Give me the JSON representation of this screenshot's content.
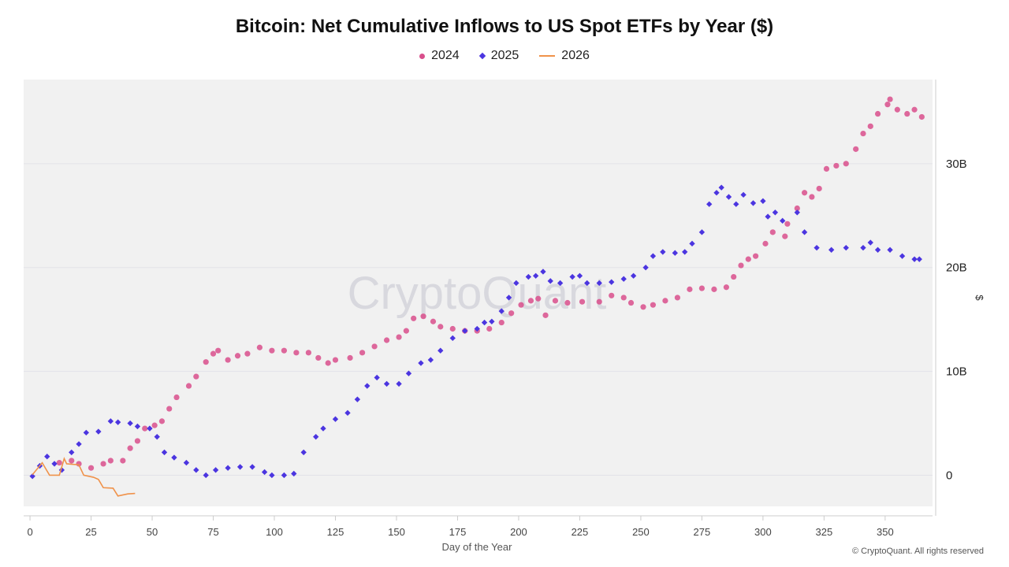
{
  "chart_data": {
    "type": "scatter",
    "title": "Bitcoin: Net Cumulative Inflows to US Spot ETFs by Year ($)",
    "xlabel": "Day of the Year",
    "ylabel": "$",
    "xlim": [
      -2.6,
      369.4
    ],
    "ylim": [
      -3,
      38.1
    ],
    "x_ticks": [
      0,
      25,
      50,
      75,
      100,
      125,
      150,
      175,
      200,
      225,
      250,
      275,
      300,
      325,
      350
    ],
    "y_ticks": [
      0,
      10,
      20,
      30
    ],
    "y_tick_labels": [
      "0",
      "10B",
      "20B",
      "30B"
    ],
    "y_axis_side": "right",
    "y_unit": "billions USD",
    "grid": true,
    "legend_position": "top",
    "watermark": "CryptoQuant",
    "series": [
      {
        "name": "2024",
        "marker": "circle",
        "color": "#d94f8c",
        "points": [
          [
            12,
            1.2
          ],
          [
            17,
            1.4
          ],
          [
            20,
            1.1
          ],
          [
            25,
            0.7
          ],
          [
            30,
            1.1
          ],
          [
            33,
            1.4
          ],
          [
            38,
            1.4
          ],
          [
            41,
            2.6
          ],
          [
            44,
            3.3
          ],
          [
            47,
            4.5
          ],
          [
            51,
            4.8
          ],
          [
            54,
            5.2
          ],
          [
            57,
            6.4
          ],
          [
            60,
            7.5
          ],
          [
            65,
            8.6
          ],
          [
            68,
            9.5
          ],
          [
            72,
            10.9
          ],
          [
            75,
            11.7
          ],
          [
            77,
            12.0
          ],
          [
            81,
            11.1
          ],
          [
            85,
            11.5
          ],
          [
            89,
            11.7
          ],
          [
            94,
            12.3
          ],
          [
            99,
            12.0
          ],
          [
            104,
            12.0
          ],
          [
            109,
            11.8
          ],
          [
            114,
            11.8
          ],
          [
            118,
            11.3
          ],
          [
            122,
            10.8
          ],
          [
            125,
            11.1
          ],
          [
            131,
            11.3
          ],
          [
            136,
            11.8
          ],
          [
            141,
            12.4
          ],
          [
            146,
            13.0
          ],
          [
            151,
            13.3
          ],
          [
            154,
            13.9
          ],
          [
            157,
            15.1
          ],
          [
            161,
            15.3
          ],
          [
            165,
            14.8
          ],
          [
            168,
            14.3
          ],
          [
            173,
            14.1
          ],
          [
            178,
            13.9
          ],
          [
            183,
            13.9
          ],
          [
            188,
            14.1
          ],
          [
            193,
            14.7
          ],
          [
            197,
            15.6
          ],
          [
            201,
            16.4
          ],
          [
            205,
            16.8
          ],
          [
            208,
            17.0
          ],
          [
            211,
            15.4
          ],
          [
            215,
            16.8
          ],
          [
            220,
            16.6
          ],
          [
            226,
            16.7
          ],
          [
            233,
            16.7
          ],
          [
            238,
            17.3
          ],
          [
            243,
            17.1
          ],
          [
            246,
            16.6
          ],
          [
            251,
            16.2
          ],
          [
            255,
            16.4
          ],
          [
            260,
            16.8
          ],
          [
            265,
            17.1
          ],
          [
            270,
            17.9
          ],
          [
            275,
            18.0
          ],
          [
            280,
            17.9
          ],
          [
            285,
            18.1
          ],
          [
            288,
            19.1
          ],
          [
            291,
            20.2
          ],
          [
            294,
            20.8
          ],
          [
            297,
            21.1
          ],
          [
            301,
            22.3
          ],
          [
            304,
            23.4
          ],
          [
            309,
            23.0
          ],
          [
            310,
            24.2
          ],
          [
            314,
            25.7
          ],
          [
            317,
            27.2
          ],
          [
            320,
            26.8
          ],
          [
            323,
            27.6
          ],
          [
            326,
            29.5
          ],
          [
            330,
            29.8
          ],
          [
            334,
            30.0
          ],
          [
            338,
            31.4
          ],
          [
            341,
            32.9
          ],
          [
            344,
            33.6
          ],
          [
            347,
            34.8
          ],
          [
            351,
            35.7
          ],
          [
            352,
            36.2
          ],
          [
            355,
            35.2
          ],
          [
            359,
            34.8
          ],
          [
            362,
            35.2
          ],
          [
            365,
            34.5
          ]
        ]
      },
      {
        "name": "2025",
        "marker": "diamond",
        "color": "#4b35e0",
        "points": [
          [
            1,
            -0.1
          ],
          [
            4,
            0.9
          ],
          [
            7,
            1.8
          ],
          [
            10,
            1.1
          ],
          [
            13,
            0.5
          ],
          [
            17,
            2.2
          ],
          [
            20,
            3.0
          ],
          [
            23,
            4.1
          ],
          [
            28,
            4.2
          ],
          [
            33,
            5.2
          ],
          [
            36,
            5.1
          ],
          [
            41,
            5.0
          ],
          [
            44,
            4.7
          ],
          [
            49,
            4.5
          ],
          [
            52,
            3.7
          ],
          [
            55,
            2.2
          ],
          [
            59,
            1.7
          ],
          [
            64,
            1.2
          ],
          [
            68,
            0.5
          ],
          [
            72,
            0.0
          ],
          [
            76,
            0.5
          ],
          [
            81,
            0.7
          ],
          [
            86,
            0.8
          ],
          [
            91,
            0.8
          ],
          [
            96,
            0.3
          ],
          [
            99,
            0.0
          ],
          [
            104,
            0.0
          ],
          [
            108,
            0.15
          ],
          [
            112,
            2.2
          ],
          [
            117,
            3.7
          ],
          [
            120,
            4.5
          ],
          [
            125,
            5.4
          ],
          [
            130,
            6.0
          ],
          [
            134,
            7.3
          ],
          [
            138,
            8.6
          ],
          [
            142,
            9.4
          ],
          [
            146,
            8.8
          ],
          [
            151,
            8.8
          ],
          [
            155,
            9.8
          ],
          [
            160,
            10.8
          ],
          [
            164,
            11.1
          ],
          [
            168,
            12.0
          ],
          [
            173,
            13.2
          ],
          [
            178,
            13.9
          ],
          [
            183,
            14.1
          ],
          [
            186,
            14.7
          ],
          [
            189,
            14.8
          ],
          [
            193,
            15.8
          ],
          [
            196,
            17.1
          ],
          [
            199,
            18.5
          ],
          [
            204,
            19.1
          ],
          [
            207,
            19.2
          ],
          [
            210,
            19.6
          ],
          [
            213,
            18.7
          ],
          [
            217,
            18.5
          ],
          [
            222,
            19.1
          ],
          [
            225,
            19.2
          ],
          [
            228,
            18.5
          ],
          [
            233,
            18.5
          ],
          [
            238,
            18.6
          ],
          [
            243,
            18.9
          ],
          [
            247,
            19.2
          ],
          [
            252,
            20.0
          ],
          [
            255,
            21.1
          ],
          [
            259,
            21.5
          ],
          [
            264,
            21.4
          ],
          [
            268,
            21.5
          ],
          [
            271,
            22.3
          ],
          [
            275,
            23.4
          ],
          [
            278,
            26.1
          ],
          [
            281,
            27.2
          ],
          [
            283,
            27.7
          ],
          [
            286,
            26.8
          ],
          [
            289,
            26.1
          ],
          [
            292,
            27.0
          ],
          [
            296,
            26.2
          ],
          [
            300,
            26.4
          ],
          [
            302,
            24.9
          ],
          [
            305,
            25.3
          ],
          [
            308,
            24.5
          ],
          [
            314,
            25.3
          ],
          [
            317,
            23.4
          ],
          [
            322,
            21.9
          ],
          [
            328,
            21.7
          ],
          [
            334,
            21.9
          ],
          [
            341,
            21.9
          ],
          [
            344,
            22.4
          ],
          [
            347,
            21.7
          ],
          [
            352,
            21.7
          ],
          [
            357,
            21.1
          ],
          [
            362,
            20.8
          ],
          [
            364,
            20.8
          ]
        ]
      },
      {
        "name": "2026",
        "marker": "line",
        "color": "#f0924a",
        "points": [
          [
            1,
            0.05
          ],
          [
            5,
            1.2
          ],
          [
            8,
            0.0
          ],
          [
            12,
            0.0
          ],
          [
            14,
            1.6
          ],
          [
            15,
            1.1
          ],
          [
            20,
            1.0
          ],
          [
            22,
            0.0
          ],
          [
            26,
            -0.2
          ],
          [
            28,
            -0.4
          ],
          [
            30,
            -1.2
          ],
          [
            34,
            -1.25
          ],
          [
            36,
            -2.0
          ],
          [
            40,
            -1.8
          ],
          [
            43,
            -1.75
          ]
        ]
      }
    ]
  },
  "copyright": "© CryptoQuant. All rights reserved"
}
